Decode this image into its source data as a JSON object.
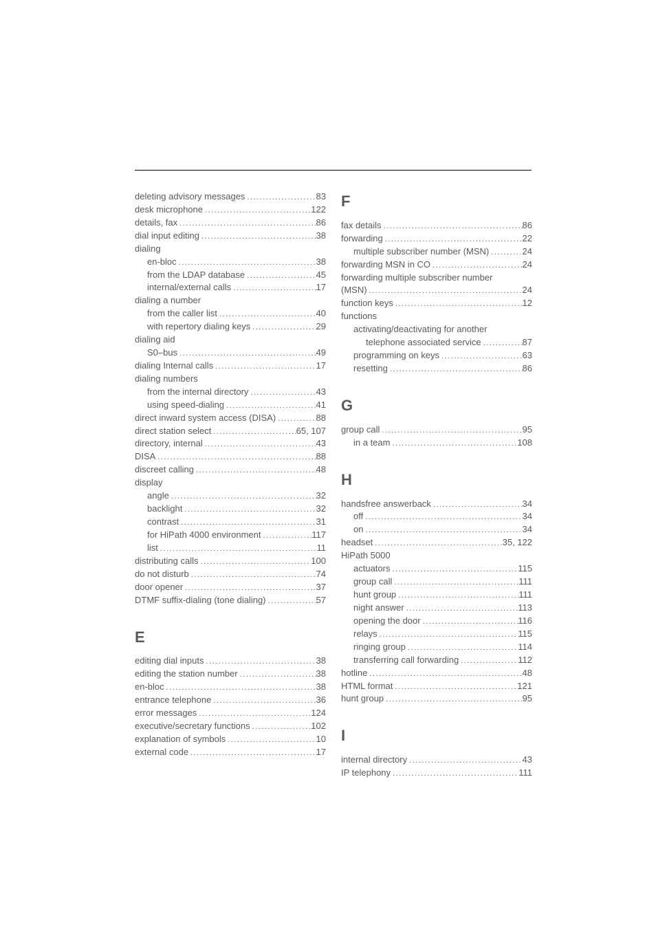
{
  "divider": true,
  "dot_fill": "...................................................................",
  "columns": [
    {
      "sections": [
        {
          "header": null,
          "entries": [
            {
              "level": 0,
              "label": "deleting advisory messages",
              "page": "83"
            },
            {
              "level": 0,
              "label": "desk microphone",
              "page": "122"
            },
            {
              "level": 0,
              "label": "details, fax",
              "page": "86"
            },
            {
              "level": 0,
              "label": "dial input editing",
              "page": "38"
            },
            {
              "level": 0,
              "label": "dialing",
              "page": null
            },
            {
              "level": 1,
              "label": "en-bloc",
              "page": "38"
            },
            {
              "level": 1,
              "label": "from the LDAP database",
              "page": "45"
            },
            {
              "level": 1,
              "label": "internal/external calls",
              "page": "17"
            },
            {
              "level": 0,
              "label": "dialing a number",
              "page": null
            },
            {
              "level": 1,
              "label": "from the caller list",
              "page": "40"
            },
            {
              "level": 1,
              "label": "with repertory dialing keys",
              "page": "29"
            },
            {
              "level": 0,
              "label": "dialing aid",
              "page": null
            },
            {
              "level": 1,
              "label": "S0–bus",
              "page": "49"
            },
            {
              "level": 0,
              "label": "dialing Internal calls",
              "page": "17"
            },
            {
              "level": 0,
              "label": "dialing numbers",
              "page": null
            },
            {
              "level": 1,
              "label": "from the internal directory",
              "page": "43"
            },
            {
              "level": 1,
              "label": "using speed-dialing",
              "page": "41"
            },
            {
              "level": 0,
              "label": "direct inward system access (DISA)",
              "page": "88"
            },
            {
              "level": 0,
              "label": "direct station select",
              "page": "65, 107"
            },
            {
              "level": 0,
              "label": "directory, internal",
              "page": "43"
            },
            {
              "level": 0,
              "label": "DISA",
              "page": "88"
            },
            {
              "level": 0,
              "label": "discreet calling",
              "page": "48"
            },
            {
              "level": 0,
              "label": "display",
              "page": null
            },
            {
              "level": 1,
              "label": "angle",
              "page": "32"
            },
            {
              "level": 1,
              "label": "backlight",
              "page": "32"
            },
            {
              "level": 1,
              "label": "contrast",
              "page": "31"
            },
            {
              "level": 1,
              "label": "for HiPath 4000 environment",
              "page": "117"
            },
            {
              "level": 1,
              "label": "list",
              "page": "11"
            },
            {
              "level": 0,
              "label": "distributing calls",
              "page": "100"
            },
            {
              "level": 0,
              "label": "do not disturb",
              "page": "74"
            },
            {
              "level": 0,
              "label": "door opener",
              "page": "37"
            },
            {
              "level": 0,
              "label": "DTMF suffix-dialing (tone dialing)",
              "page": "57"
            }
          ]
        },
        {
          "header": "E",
          "entries": [
            {
              "level": 0,
              "label": "editing dial inputs",
              "page": "38"
            },
            {
              "level": 0,
              "label": "editing the station number",
              "page": "38"
            },
            {
              "level": 0,
              "label": "en-bloc",
              "page": "38"
            },
            {
              "level": 0,
              "label": "entrance telephone",
              "page": "36"
            },
            {
              "level": 0,
              "label": "error messages",
              "page": "124"
            },
            {
              "level": 0,
              "label": "executive/secretary functions",
              "page": "102"
            },
            {
              "level": 0,
              "label": "explanation of symbols",
              "page": "10"
            },
            {
              "level": 0,
              "label": "external code",
              "page": "17"
            }
          ]
        }
      ]
    },
    {
      "sections": [
        {
          "header": "F",
          "header_first": true,
          "entries": [
            {
              "level": 0,
              "label": "fax details",
              "page": "86"
            },
            {
              "level": 0,
              "label": "forwarding",
              "page": "22"
            },
            {
              "level": 1,
              "label": "multiple subscriber number (MSN)",
              "page": "24"
            },
            {
              "level": 0,
              "label": "forwarding MSN in CO",
              "page": "24"
            },
            {
              "level": 0,
              "label": "forwarding multiple subscriber number",
              "page": null
            },
            {
              "level": 0,
              "label": "(MSN)",
              "page": "24"
            },
            {
              "level": 0,
              "label": "function keys",
              "page": "12"
            },
            {
              "level": 0,
              "label": "functions",
              "page": null
            },
            {
              "level": 1,
              "label": "activating/deactivating for another",
              "page": null
            },
            {
              "level": 2,
              "label": "telephone associated service",
              "page": "87"
            },
            {
              "level": 1,
              "label": "programming on keys",
              "page": "63"
            },
            {
              "level": 1,
              "label": "resetting",
              "page": "86"
            }
          ]
        },
        {
          "header": "G",
          "entries": [
            {
              "level": 0,
              "label": "group call",
              "page": "95"
            },
            {
              "level": 1,
              "label": "in a team",
              "page": "108"
            }
          ]
        },
        {
          "header": "H",
          "entries": [
            {
              "level": 0,
              "label": "handsfree answerback",
              "page": "34"
            },
            {
              "level": 1,
              "label": "off",
              "page": "34"
            },
            {
              "level": 1,
              "label": "on",
              "page": "34"
            },
            {
              "level": 0,
              "label": "headset",
              "page": "35, 122"
            },
            {
              "level": 0,
              "label": "HiPath 5000",
              "page": null
            },
            {
              "level": 1,
              "label": "actuators",
              "page": "115"
            },
            {
              "level": 1,
              "label": "group call",
              "page": "111"
            },
            {
              "level": 1,
              "label": "hunt group",
              "page": "111"
            },
            {
              "level": 1,
              "label": "night answer",
              "page": "113"
            },
            {
              "level": 1,
              "label": "opening the door",
              "page": "116"
            },
            {
              "level": 1,
              "label": "relays",
              "page": "115"
            },
            {
              "level": 1,
              "label": "ringing group",
              "page": "114"
            },
            {
              "level": 1,
              "label": "transferring call forwarding",
              "page": "112"
            },
            {
              "level": 0,
              "label": "hotline",
              "page": "48"
            },
            {
              "level": 0,
              "label": "HTML format",
              "page": "121"
            },
            {
              "level": 0,
              "label": "hunt group",
              "page": "95"
            }
          ]
        },
        {
          "header": "I",
          "entries": [
            {
              "level": 0,
              "label": "internal directory",
              "page": "43"
            },
            {
              "level": 0,
              "label": "IP telephony",
              "page": "111"
            }
          ]
        }
      ]
    }
  ]
}
